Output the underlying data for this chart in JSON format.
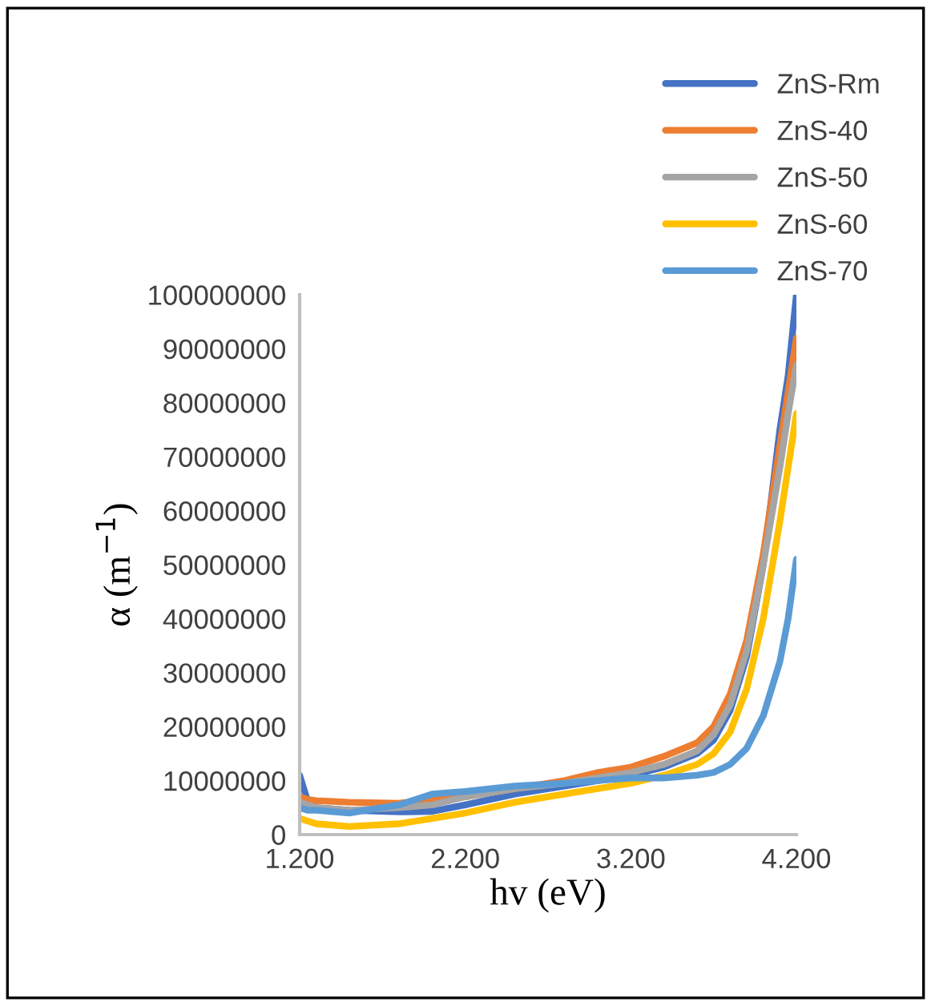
{
  "chart_data": {
    "type": "line",
    "xlabel": "hv (eV)",
    "ylabel": "α (m$^{−1}$)",
    "x": [
      1.2,
      1.25,
      1.3,
      1.5,
      1.8,
      2.0,
      2.2,
      2.5,
      2.8,
      3.0,
      3.2,
      3.4,
      3.6,
      3.7,
      3.8,
      3.9,
      4.0,
      4.1,
      4.15,
      4.2
    ],
    "series": [
      {
        "name": "ZnS-Rm",
        "color": "#4472c4",
        "values": [
          11000000,
          6000000,
          5000000,
          4500000,
          4200000,
          4300000,
          5500000,
          7500000,
          9000000,
          10000000,
          11000000,
          12500000,
          15000000,
          17500000,
          23000000,
          33000000,
          50000000,
          75000000,
          85000000,
          100000000
        ]
      },
      {
        "name": "ZnS-40",
        "color": "#ed7d31",
        "values": [
          7000000,
          6500000,
          6300000,
          6000000,
          5800000,
          6500000,
          7000000,
          8500000,
          10000000,
          11500000,
          12500000,
          14500000,
          17000000,
          20000000,
          26000000,
          36000000,
          52000000,
          72000000,
          82000000,
          92000000
        ]
      },
      {
        "name": "ZnS-50",
        "color": "#a5a5a5",
        "values": [
          6000000,
          5500000,
          5000000,
          4500000,
          5000000,
          5500000,
          7000000,
          8500000,
          9500000,
          10500000,
          11500000,
          13000000,
          15500000,
          18500000,
          24000000,
          34000000,
          50000000,
          68000000,
          78000000,
          87000000
        ]
      },
      {
        "name": "ZnS-60",
        "color": "#ffc000",
        "values": [
          3000000,
          2500000,
          2000000,
          1500000,
          2000000,
          3000000,
          4000000,
          6000000,
          7500000,
          8500000,
          9500000,
          11000000,
          13000000,
          15000000,
          19000000,
          27000000,
          40000000,
          58000000,
          68000000,
          78000000
        ]
      },
      {
        "name": "ZnS-70",
        "color": "#5b9bd5",
        "values": [
          5000000,
          4500000,
          4500000,
          4000000,
          5500000,
          7500000,
          8000000,
          9000000,
          9500000,
          10000000,
          10500000,
          10500000,
          11000000,
          11500000,
          13000000,
          16000000,
          22000000,
          32000000,
          40000000,
          51000000
        ]
      }
    ],
    "xlim": [
      1.2,
      4.2
    ],
    "xticks": [
      {
        "value": 1.2,
        "label": "1.200"
      },
      {
        "value": 2.2,
        "label": "2.200"
      },
      {
        "value": 3.2,
        "label": "3.200"
      },
      {
        "value": 4.2,
        "label": "4.200"
      }
    ],
    "ylim": [
      0,
      100000000
    ],
    "yticks": [
      0,
      10000000,
      20000000,
      30000000,
      40000000,
      50000000,
      60000000,
      70000000,
      80000000,
      90000000,
      100000000
    ],
    "legend": "top right",
    "grid": false,
    "marker": "none",
    "line_style": "solid"
  }
}
